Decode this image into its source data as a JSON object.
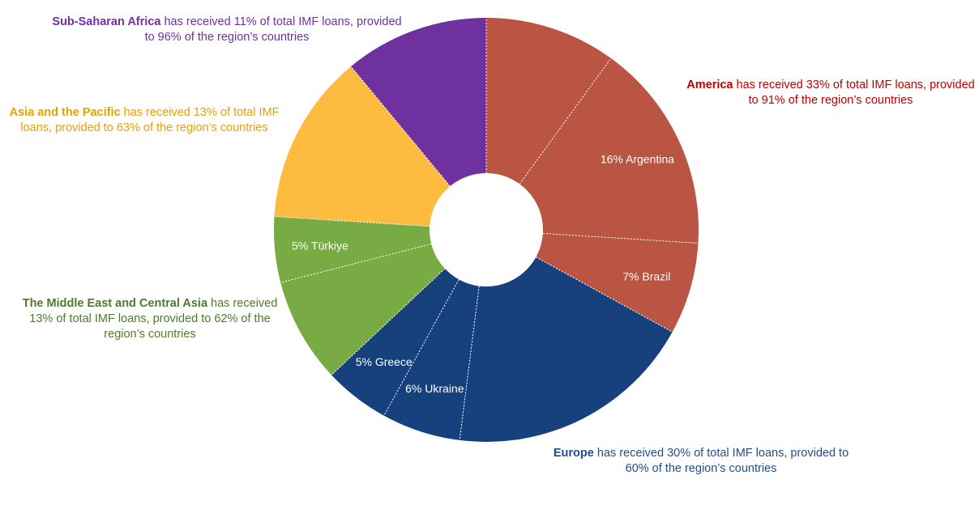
{
  "chart_data": {
    "type": "pie",
    "donut": true,
    "start_angle_deg": 0,
    "direction": "clockwise",
    "series": [
      {
        "name": "America",
        "color": "#b95542",
        "slices": [
          {
            "label": "",
            "value": 10
          },
          {
            "label": "16% Argentina",
            "value": 16
          },
          {
            "label": "7% Brazil",
            "value": 7
          }
        ]
      },
      {
        "name": "Europe",
        "color": "#16417c",
        "slices": [
          {
            "label": "",
            "value": 19
          },
          {
            "label": "6% Ukraine",
            "value": 6
          },
          {
            "label": "5% Greece",
            "value": 5
          }
        ]
      },
      {
        "name": "The Middle East and Central Asia",
        "color": "#78ab44",
        "slices": [
          {
            "label": "",
            "value": 8
          },
          {
            "label": "5% Türkiye",
            "value": 5
          }
        ]
      },
      {
        "name": "Asia and the Pacific",
        "color": "#fdbc40",
        "slices": [
          {
            "label": "",
            "value": 13
          }
        ]
      },
      {
        "name": "Sub-Saharan Africa",
        "color": "#6f31a0",
        "slices": [
          {
            "label": "",
            "value": 11
          }
        ]
      }
    ]
  },
  "annotations": {
    "ssa": {
      "bold": "Sub-Saharan Africa",
      "text": " has received 11% of total IMF loans, provided to 96% of the region’s countries",
      "color": "#7030a0"
    },
    "asia": {
      "bold": "Asia and the Pacific",
      "text": " has received 13% of total IMF loans, provided to 63% of the region’s countries",
      "color": "#e6a100"
    },
    "me": {
      "bold": "The Middle East and Central Asia",
      "text": " has received 13% of total IMF loans, provided to 62% of the region’s countries",
      "color": "#4f7a2a"
    },
    "america": {
      "bold": "America",
      "text": " has received 33% of total IMF loans, provided to 91% of the region’s countries",
      "color": "#c00000"
    },
    "europe": {
      "bold": "Europe",
      "text": " has received 30% of total IMF loans, provided to 60% of the region’s countries",
      "color": "#1f4e8f"
    }
  }
}
